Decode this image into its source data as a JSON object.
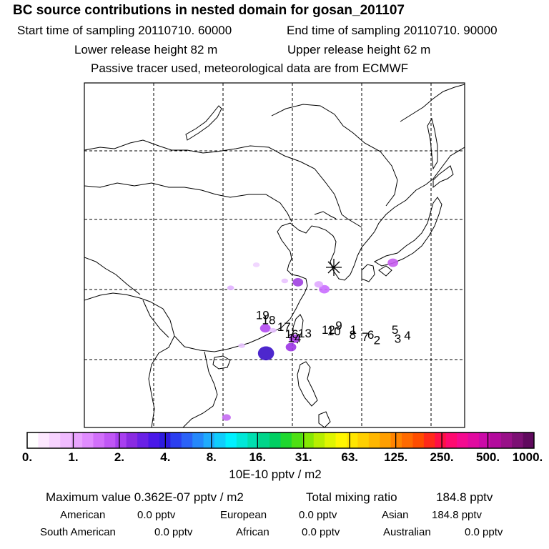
{
  "header": {
    "title": "BC  source contributions in nested domain for gosan_201107",
    "start_time": "Start time of sampling 20110710. 60000",
    "end_time": "End time of sampling 20110710. 90000",
    "lower_release": "Lower release height   82 m",
    "upper_release": "Upper release height   62 m",
    "note": "Passive tracer used, meteorological data are from ECMWF"
  },
  "map": {
    "receptor_marker": "*",
    "trajectory_labels": [
      {
        "text": "19",
        "lon": 115.7,
        "lat": 25.9
      },
      {
        "text": "18",
        "lon": 116.6,
        "lat": 25.2
      },
      {
        "text": "17",
        "lon": 118.8,
        "lat": 24.2
      },
      {
        "text": "16",
        "lon": 119.9,
        "lat": 23.2
      },
      {
        "text": "14",
        "lon": 120.3,
        "lat": 22.6
      },
      {
        "text": "13",
        "lon": 121.8,
        "lat": 23.3
      },
      {
        "text": "12",
        "lon": 125.2,
        "lat": 23.8
      },
      {
        "text": "9",
        "lon": 126.7,
        "lat": 24.4
      },
      {
        "text": "10",
        "lon": 126.0,
        "lat": 23.6
      },
      {
        "text": "1",
        "lon": 128.8,
        "lat": 23.8
      },
      {
        "text": "8",
        "lon": 128.7,
        "lat": 23.1
      },
      {
        "text": "7",
        "lon": 130.5,
        "lat": 22.8
      },
      {
        "text": "6",
        "lon": 131.3,
        "lat": 23.1
      },
      {
        "text": "2",
        "lon": 132.2,
        "lat": 22.3
      },
      {
        "text": "5",
        "lon": 134.8,
        "lat": 23.8
      },
      {
        "text": "3",
        "lon": 135.2,
        "lat": 22.5
      },
      {
        "text": "4",
        "lon": 136.6,
        "lat": 23.0
      }
    ],
    "plumes": [
      {
        "lon": 124.6,
        "lat": 30.2,
        "value": 3,
        "color": "#c96dff"
      },
      {
        "lon": 123.8,
        "lat": 30.9,
        "value": 2,
        "color": "#e0a8ff"
      },
      {
        "lon": 134.5,
        "lat": 34.0,
        "value": 3,
        "color": "#c65cf0"
      },
      {
        "lon": 120.8,
        "lat": 31.2,
        "value": 3,
        "color": "#a040e0"
      },
      {
        "lon": 118.9,
        "lat": 31.4,
        "value": 1,
        "color": "#e9c2ff"
      },
      {
        "lon": 111.1,
        "lat": 30.4,
        "value": 1,
        "color": "#e0b0ff"
      },
      {
        "lon": 114.8,
        "lat": 33.7,
        "value": 1,
        "color": "#efd3ff"
      },
      {
        "lon": 116.1,
        "lat": 24.6,
        "value": 3,
        "color": "#b24af2"
      },
      {
        "lon": 117.2,
        "lat": 24.3,
        "value": 1,
        "color": "#e6bfff"
      },
      {
        "lon": 120.3,
        "lat": 23.1,
        "value": 3,
        "color": "#b040f0"
      },
      {
        "lon": 119.8,
        "lat": 21.9,
        "value": 3,
        "color": "#9c34e6"
      },
      {
        "lon": 116.2,
        "lat": 21.0,
        "value": 6,
        "color": "#3a10c8"
      },
      {
        "lon": 110.5,
        "lat": 11.8,
        "value": 2,
        "color": "#c46cf2"
      },
      {
        "lon": 112.7,
        "lat": 22.1,
        "value": 1,
        "color": "#e8c4ff"
      }
    ]
  },
  "colorbar": {
    "colors": [
      "#ffffff",
      "#fde8ff",
      "#f7d3ff",
      "#f0bbff",
      "#e9a4ff",
      "#e08cff",
      "#d16ffa",
      "#c057f5",
      "#a83ff0",
      "#8a2be2",
      "#6a21e6",
      "#4a18e8",
      "#2e1bdf",
      "#2b3ff0",
      "#2a62f7",
      "#2588fb",
      "#1fabfd",
      "#10cdfc",
      "#00f0ff",
      "#00e8d8",
      "#00dfb0",
      "#00d58a",
      "#00cf62",
      "#1fd82f",
      "#4ee014",
      "#86e804",
      "#b7ee00",
      "#dff500",
      "#fff600",
      "#ffe500",
      "#ffcf00",
      "#ffb700",
      "#ff9f00",
      "#ff8400",
      "#ff6a00",
      "#ff4d00",
      "#ff2a1a",
      "#ff1046",
      "#ff0a70",
      "#f50a90",
      "#e10aa0",
      "#cb0aa8",
      "#b30a9d",
      "#981088",
      "#7c1074",
      "#600a5e"
    ],
    "tick_labels": [
      "0.",
      "1.",
      "2.",
      "4.",
      "8.",
      "16.",
      "31.",
      "63.",
      "125.",
      "250.",
      "500.",
      "1000."
    ],
    "unit": "10E-10 pptv / m2"
  },
  "stats": {
    "max_value_label": "Maximum value  0.362E-07 pptv / m2",
    "total_label": "Total mixing ratio",
    "total_value": "184.8 pptv",
    "regions": [
      {
        "name": "American",
        "value": "0.0 pptv"
      },
      {
        "name": "European",
        "value": "0.0 pptv"
      },
      {
        "name": "Asian",
        "value": "184.8 pptv"
      },
      {
        "name": "South American",
        "value": "0.0 pptv"
      },
      {
        "name": "African",
        "value": "0.0 pptv"
      },
      {
        "name": "Australian",
        "value": "0.0 pptv"
      }
    ]
  }
}
